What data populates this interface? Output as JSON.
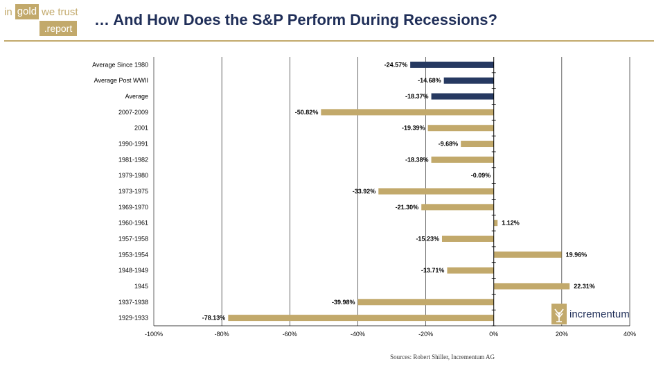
{
  "header": {
    "logo": {
      "in": "in",
      "gold": "gold",
      "we_trust": "we trust",
      "report": ".report"
    },
    "title": "… And How Does the S&P Perform During Recessions?"
  },
  "chart_data": {
    "type": "bar",
    "orientation": "horizontal",
    "title": "… And How Does the S&P Perform During Recessions?",
    "categories": [
      "Average Since 1980",
      "Average Post WWII",
      "Average",
      "2007-2009",
      "2001",
      "1990-1991",
      "1981-1982",
      "1979-1980",
      "1973-1975",
      "1969-1970",
      "1960-1961",
      "1957-1958",
      "1953-1954",
      "1948-1949",
      "1945",
      "1937-1938",
      "1929-1933"
    ],
    "values": [
      -24.57,
      -14.68,
      -18.37,
      -50.82,
      -19.39,
      -9.68,
      -18.38,
      -0.09,
      -33.92,
      -21.3,
      1.12,
      -15.23,
      19.96,
      -13.71,
      22.31,
      -39.98,
      -78.13
    ],
    "data_labels": [
      "-24.57%",
      "-14.68%",
      "-18.37%",
      "-50.82%",
      "-19.39%",
      "-9.68%",
      "-18.38%",
      "-0.09%",
      "-33.92%",
      "-21.30%",
      "1.12%",
      "-15.23%",
      "19.96%",
      "-13.71%",
      "22.31%",
      "-39.98%",
      "-78.13%"
    ],
    "bar_colors": [
      "#263961",
      "#263961",
      "#263961",
      "#c2a96b",
      "#c2a96b",
      "#c2a96b",
      "#c2a96b",
      "#c2a96b",
      "#c2a96b",
      "#c2a96b",
      "#c2a96b",
      "#c2a96b",
      "#c2a96b",
      "#c2a96b",
      "#c2a96b",
      "#c2a96b",
      "#c2a96b"
    ],
    "xlim": [
      -100,
      40
    ],
    "x_ticks": [
      -100,
      -80,
      -60,
      -40,
      -20,
      0,
      20,
      40
    ],
    "x_tick_labels": [
      "-100%",
      "-80%",
      "-60%",
      "-40%",
      "-20%",
      "0%",
      "20%",
      "40%"
    ],
    "grid": "vertical"
  },
  "footer": {
    "source": "Sources: Robert Shiller, Incrementum AG",
    "brand": "incrementum"
  },
  "colors": {
    "navy": "#263961",
    "gold": "#c2a96b",
    "title": "#1f2e58"
  }
}
